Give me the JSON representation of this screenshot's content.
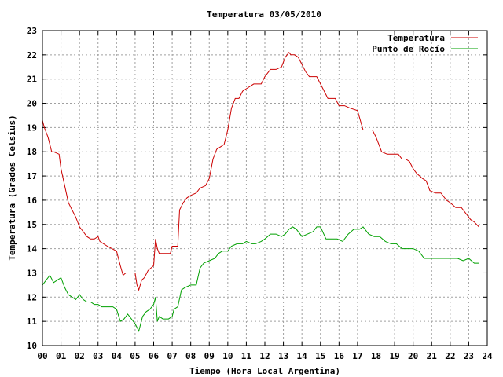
{
  "chart_data": {
    "type": "line",
    "title": "Temperatura 03/05/2010",
    "xlabel": "Tiempo (Hora Local Argentina)",
    "ylabel": "Temperatura (Grados Celsius)",
    "xlim": [
      0,
      24
    ],
    "ylim": [
      10,
      23
    ],
    "x_ticks": [
      "00",
      "01",
      "02",
      "03",
      "04",
      "05",
      "06",
      "07",
      "08",
      "09",
      "10",
      "11",
      "12",
      "13",
      "14",
      "15",
      "16",
      "17",
      "18",
      "19",
      "20",
      "21",
      "22",
      "23",
      "24"
    ],
    "y_ticks": [
      "10",
      "11",
      "12",
      "13",
      "14",
      "15",
      "16",
      "17",
      "18",
      "19",
      "20",
      "21",
      "22",
      "23"
    ],
    "grid": true,
    "legend_position": "top-right",
    "series": [
      {
        "name": "Temperatura",
        "color": "#cc0000",
        "x": [
          0.0,
          0.1,
          0.3,
          0.5,
          0.6,
          0.9,
          1.0,
          1.2,
          1.4,
          1.6,
          1.8,
          2.0,
          2.2,
          2.4,
          2.6,
          2.8,
          3.0,
          3.1,
          3.3,
          3.5,
          4.0,
          4.2,
          4.35,
          4.5,
          4.7,
          5.0,
          5.1,
          5.2,
          5.35,
          5.5,
          5.7,
          6.0,
          6.1,
          6.2,
          6.3,
          6.5,
          6.9,
          7.0,
          7.3,
          7.4,
          7.6,
          7.8,
          8.0,
          8.3,
          8.5,
          8.8,
          9.0,
          9.2,
          9.4,
          9.6,
          9.8,
          10.0,
          10.2,
          10.4,
          10.6,
          10.8,
          11.0,
          11.2,
          11.4,
          11.6,
          11.8,
          12.0,
          12.3,
          12.6,
          12.9,
          13.1,
          13.3,
          13.4,
          13.6,
          13.8,
          14.0,
          14.2,
          14.4,
          14.6,
          14.8,
          15.0,
          15.2,
          15.4,
          15.6,
          15.8,
          16.0,
          16.3,
          16.6,
          17.0,
          17.3,
          17.6,
          17.8,
          18.0,
          18.3,
          18.6,
          18.9,
          19.2,
          19.4,
          19.6,
          19.8,
          20.0,
          20.2,
          20.5,
          20.7,
          20.9,
          21.2,
          21.5,
          21.8,
          22.0,
          22.3,
          22.6,
          22.9,
          23.1,
          23.3,
          23.55
        ],
        "values": [
          19.3,
          19.0,
          18.6,
          18.0,
          18.0,
          17.9,
          17.3,
          16.6,
          15.9,
          15.6,
          15.3,
          14.9,
          14.7,
          14.5,
          14.4,
          14.4,
          14.5,
          14.3,
          14.2,
          14.1,
          13.9,
          13.3,
          12.9,
          13.0,
          13.0,
          13.0,
          12.5,
          12.3,
          12.7,
          12.8,
          13.1,
          13.3,
          14.4,
          14.0,
          13.8,
          13.8,
          13.8,
          14.1,
          14.1,
          15.6,
          15.9,
          16.1,
          16.2,
          16.3,
          16.5,
          16.6,
          16.9,
          17.7,
          18.1,
          18.2,
          18.3,
          18.9,
          19.8,
          20.2,
          20.2,
          20.5,
          20.6,
          20.7,
          20.8,
          20.8,
          20.8,
          21.1,
          21.4,
          21.4,
          21.5,
          21.9,
          22.1,
          22.0,
          22.0,
          21.9,
          21.6,
          21.3,
          21.1,
          21.1,
          21.1,
          20.8,
          20.5,
          20.2,
          20.2,
          20.2,
          19.9,
          19.9,
          19.8,
          19.7,
          18.9,
          18.9,
          18.9,
          18.6,
          18.0,
          17.9,
          17.9,
          17.9,
          17.7,
          17.7,
          17.6,
          17.3,
          17.1,
          16.9,
          16.8,
          16.4,
          16.3,
          16.3,
          16.0,
          15.9,
          15.7,
          15.7,
          15.4,
          15.2,
          15.1,
          14.9
        ]
      },
      {
        "name": "Punto de Rocío",
        "color": "#00a000",
        "x": [
          0.0,
          0.2,
          0.4,
          0.6,
          0.8,
          1.0,
          1.2,
          1.4,
          1.6,
          1.8,
          2.0,
          2.2,
          2.4,
          2.6,
          2.8,
          3.0,
          3.2,
          3.4,
          3.6,
          3.8,
          4.0,
          4.2,
          4.4,
          4.6,
          4.8,
          5.0,
          5.2,
          5.4,
          5.6,
          5.8,
          6.0,
          6.1,
          6.2,
          6.3,
          6.5,
          6.8,
          7.0,
          7.1,
          7.3,
          7.5,
          7.7,
          8.0,
          8.3,
          8.5,
          8.7,
          9.0,
          9.3,
          9.5,
          9.7,
          10.0,
          10.2,
          10.5,
          10.8,
          11.0,
          11.3,
          11.5,
          11.8,
          12.0,
          12.3,
          12.6,
          12.9,
          13.1,
          13.3,
          13.5,
          13.7,
          14.0,
          14.3,
          14.6,
          14.8,
          15.0,
          15.3,
          15.6,
          15.9,
          16.2,
          16.5,
          16.8,
          17.1,
          17.3,
          17.6,
          17.9,
          18.2,
          18.5,
          18.8,
          19.1,
          19.4,
          19.7,
          20.0,
          20.3,
          20.6,
          20.9,
          21.2,
          21.5,
          21.8,
          22.1,
          22.4,
          22.7,
          23.0,
          23.3,
          23.55
        ],
        "values": [
          12.5,
          12.7,
          12.9,
          12.6,
          12.7,
          12.8,
          12.4,
          12.1,
          12.0,
          11.9,
          12.1,
          11.9,
          11.8,
          11.8,
          11.7,
          11.7,
          11.6,
          11.6,
          11.6,
          11.6,
          11.5,
          11.0,
          11.1,
          11.3,
          11.1,
          10.9,
          10.6,
          11.2,
          11.4,
          11.5,
          11.7,
          12.0,
          11.0,
          11.2,
          11.1,
          11.1,
          11.2,
          11.5,
          11.6,
          12.3,
          12.4,
          12.5,
          12.5,
          13.2,
          13.4,
          13.5,
          13.6,
          13.8,
          13.9,
          13.9,
          14.1,
          14.2,
          14.2,
          14.3,
          14.2,
          14.2,
          14.3,
          14.4,
          14.6,
          14.6,
          14.5,
          14.6,
          14.8,
          14.9,
          14.8,
          14.5,
          14.6,
          14.7,
          14.9,
          14.9,
          14.4,
          14.4,
          14.4,
          14.3,
          14.6,
          14.8,
          14.8,
          14.9,
          14.6,
          14.5,
          14.5,
          14.3,
          14.2,
          14.2,
          14.0,
          14.0,
          14.0,
          13.9,
          13.6,
          13.6,
          13.6,
          13.6,
          13.6,
          13.6,
          13.6,
          13.5,
          13.6,
          13.4,
          13.4
        ]
      }
    ]
  }
}
